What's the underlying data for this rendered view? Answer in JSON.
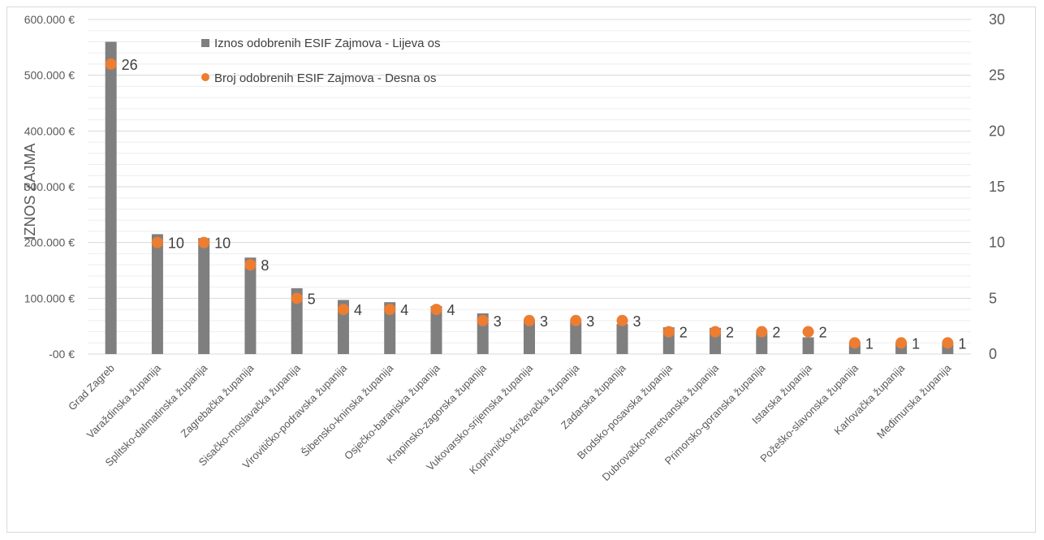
{
  "chart_data": {
    "type": "bar",
    "categories": [
      "Grad Zagreb",
      "Varaždinska županija",
      "Splitsko-dalmatinska županija",
      "Zagrebačka županija",
      "Sisačko-moslavačka županija",
      "Virovitičko-podravska županija",
      "Šibensko-kninska županija",
      "Osječko-baranjska županija",
      "Krapinsko-zagorska županija",
      "Vukovarsko-srijemska županija",
      "Koprivničko-križevačka županija",
      "Zadarska županija",
      "Brodsko-posavska županija",
      "Dubrovačko-neretvanska županija",
      "Primorsko-goranska županija",
      "Istarska županija",
      "Požeško-slavonska županija",
      "Karlovačka županija",
      "Međimurska županija"
    ],
    "series": [
      {
        "name": "Iznos odobrenih ESIF Zajmova - Lijeva os",
        "type": "bar",
        "axis": "left",
        "color": "#7f7f7f",
        "values": [
          560000,
          215000,
          208000,
          173000,
          118000,
          97000,
          93000,
          86000,
          73000,
          60000,
          58000,
          54000,
          48000,
          47000,
          38000,
          30000,
          20000,
          19000,
          19000
        ]
      },
      {
        "name": "Broj odobrenih ESIF Zajmova - Desna os",
        "type": "scatter",
        "axis": "right",
        "color": "#ed7d31",
        "values": [
          26,
          10,
          10,
          8,
          5,
          4,
          4,
          4,
          3,
          3,
          3,
          3,
          2,
          2,
          2,
          2,
          1,
          1,
          1
        ]
      }
    ],
    "ylabel": "IZNOS ZAJMA",
    "ylim": [
      0,
      600000
    ],
    "y_ticks": [
      "-00 €",
      "100.000 €",
      "200.000 €",
      "300.000 €",
      "400.000 €",
      "500.000 €",
      "600.000 €"
    ],
    "y2lim": [
      0,
      30
    ],
    "y2_ticks": [
      "0",
      "5",
      "10",
      "15",
      "20",
      "25",
      "30"
    ],
    "grid": true,
    "legend_position": "top-left",
    "data_labels": true
  }
}
